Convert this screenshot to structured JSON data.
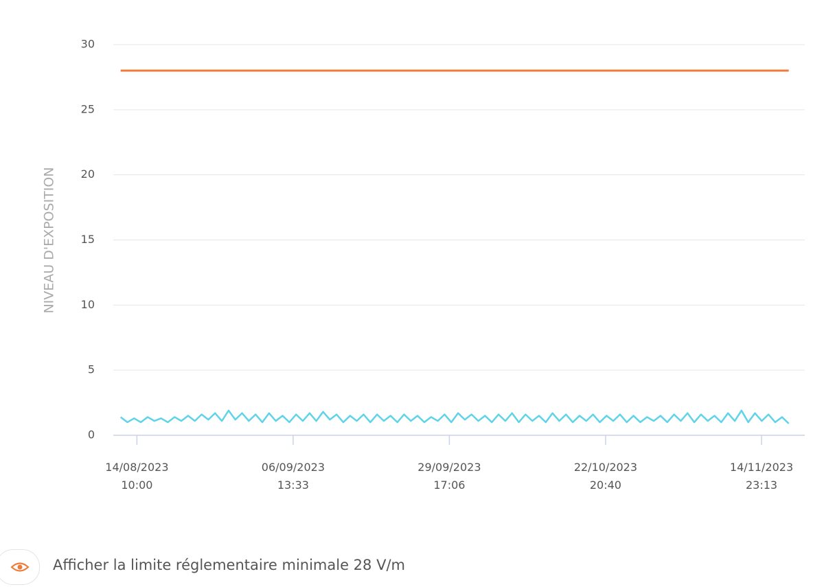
{
  "chart_data": {
    "type": "line",
    "y_label": "NIVEAU D'EXPOSITION",
    "ylim": [
      0,
      30
    ],
    "yticks": [
      0,
      5,
      10,
      15,
      20,
      25,
      30
    ],
    "grid": true,
    "xlim": [
      "2023-08-10T22:00",
      "2023-11-21T09:00"
    ],
    "xticks": [
      {
        "value": "2023-08-14T10:00",
        "label": "14/08/2023\n10:00"
      },
      {
        "value": "2023-09-06T13:33",
        "label": "06/09/2023\n13:33"
      },
      {
        "value": "2023-09-29T17:06",
        "label": "29/09/2023\n17:06"
      },
      {
        "value": "2023-10-22T20:40",
        "label": "22/10/2023\n20:40"
      },
      {
        "value": "2023-11-14T23:13",
        "label": "14/11/2023\n23:13"
      }
    ],
    "x": [
      "2023-08-12T00:00",
      "2023-08-13T00:00",
      "2023-08-14T00:00",
      "2023-08-15T00:00",
      "2023-08-16T00:00",
      "2023-08-17T00:00",
      "2023-08-18T00:00",
      "2023-08-19T00:00",
      "2023-08-20T00:00",
      "2023-08-21T00:00",
      "2023-08-22T00:00",
      "2023-08-23T00:00",
      "2023-08-24T00:00",
      "2023-08-25T00:00",
      "2023-08-26T00:00",
      "2023-08-27T00:00",
      "2023-08-28T00:00",
      "2023-08-29T00:00",
      "2023-08-30T00:00",
      "2023-08-31T00:00",
      "2023-09-01T00:00",
      "2023-09-02T00:00",
      "2023-09-03T00:00",
      "2023-09-04T00:00",
      "2023-09-05T00:00",
      "2023-09-06T00:00",
      "2023-09-07T00:00",
      "2023-09-08T00:00",
      "2023-09-09T00:00",
      "2023-09-10T00:00",
      "2023-09-11T00:00",
      "2023-09-12T00:00",
      "2023-09-13T00:00",
      "2023-09-14T00:00",
      "2023-09-15T00:00",
      "2023-09-16T00:00",
      "2023-09-17T00:00",
      "2023-09-18T00:00",
      "2023-09-19T00:00",
      "2023-09-20T00:00",
      "2023-09-21T00:00",
      "2023-09-22T00:00",
      "2023-09-23T00:00",
      "2023-09-24T00:00",
      "2023-09-25T00:00",
      "2023-09-26T00:00",
      "2023-09-27T00:00",
      "2023-09-28T00:00",
      "2023-09-29T00:00",
      "2023-09-30T00:00",
      "2023-10-01T00:00",
      "2023-10-02T00:00",
      "2023-10-03T00:00",
      "2023-10-04T00:00",
      "2023-10-05T00:00",
      "2023-10-06T00:00",
      "2023-10-07T00:00",
      "2023-10-08T00:00",
      "2023-10-09T00:00",
      "2023-10-10T00:00",
      "2023-10-11T00:00",
      "2023-10-12T00:00",
      "2023-10-13T00:00",
      "2023-10-14T00:00",
      "2023-10-15T00:00",
      "2023-10-16T00:00",
      "2023-10-17T00:00",
      "2023-10-18T00:00",
      "2023-10-19T00:00",
      "2023-10-20T00:00",
      "2023-10-21T00:00",
      "2023-10-22T00:00",
      "2023-10-23T00:00",
      "2023-10-24T00:00",
      "2023-10-25T00:00",
      "2023-10-26T00:00",
      "2023-10-27T00:00",
      "2023-10-28T00:00",
      "2023-10-29T00:00",
      "2023-10-30T00:00",
      "2023-10-31T00:00",
      "2023-11-01T00:00",
      "2023-11-02T00:00",
      "2023-11-03T00:00",
      "2023-11-04T00:00",
      "2023-11-05T00:00",
      "2023-11-06T00:00",
      "2023-11-07T00:00",
      "2023-11-08T00:00",
      "2023-11-09T00:00",
      "2023-11-10T00:00",
      "2023-11-11T00:00",
      "2023-11-12T00:00",
      "2023-11-13T00:00",
      "2023-11-14T00:00",
      "2023-11-15T00:00",
      "2023-11-16T00:00",
      "2023-11-17T00:00",
      "2023-11-18T00:00",
      "2023-11-19T00:00"
    ],
    "series": [
      {
        "color": "#5fd3e8",
        "values": [
          1.4,
          1.0,
          1.3,
          1.0,
          1.4,
          1.1,
          1.3,
          1.0,
          1.4,
          1.1,
          1.5,
          1.1,
          1.6,
          1.2,
          1.7,
          1.1,
          1.9,
          1.2,
          1.7,
          1.1,
          1.6,
          1.0,
          1.7,
          1.1,
          1.5,
          1.0,
          1.6,
          1.1,
          1.7,
          1.1,
          1.8,
          1.2,
          1.6,
          1.0,
          1.5,
          1.1,
          1.6,
          1.0,
          1.6,
          1.1,
          1.5,
          1.0,
          1.6,
          1.1,
          1.5,
          1.0,
          1.4,
          1.1,
          1.6,
          1.0,
          1.7,
          1.2,
          1.6,
          1.1,
          1.5,
          1.0,
          1.6,
          1.1,
          1.7,
          1.0,
          1.6,
          1.1,
          1.5,
          1.0,
          1.7,
          1.1,
          1.6,
          1.0,
          1.5,
          1.1,
          1.6,
          1.0,
          1.5,
          1.1,
          1.6,
          1.0,
          1.5,
          1.0,
          1.4,
          1.1,
          1.5,
          1.0,
          1.6,
          1.1,
          1.7,
          1.0,
          1.6,
          1.1,
          1.5,
          1.0,
          1.7,
          1.1,
          1.9,
          1.0,
          1.7,
          1.1,
          1.6,
          1.0,
          1.4,
          0.9
        ]
      }
    ],
    "limit": {
      "value": 28,
      "color": "#f07a3a"
    },
    "toggle_label": "Afficher la limite réglementaire minimale 28 V/m"
  }
}
